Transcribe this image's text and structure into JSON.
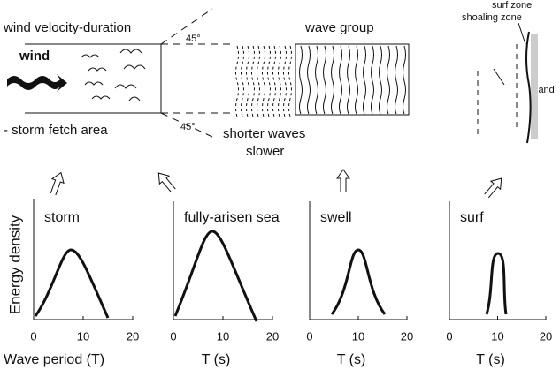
{
  "top": {
    "fetch_title": "wind velocity-duration",
    "wind": "wind",
    "fetch_label": "- storm fetch area",
    "angle_top": "45°",
    "angle_bottom": "45°",
    "group_title": "wave group",
    "group_note_1": "shorter waves",
    "group_note_2": "slower",
    "surf_zone": "surf zone",
    "shoaling_zone": "shoaling zone",
    "land": "land"
  },
  "y_label": "Energy density",
  "panels": [
    {
      "title": "storm",
      "x_label": "Wave period (T)",
      "xlim": [
        0,
        20
      ],
      "xticks": [
        0,
        10,
        20
      ]
    },
    {
      "title": "fully-arisen sea",
      "x_label": "T (s)",
      "xlim": [
        0,
        20
      ],
      "xticks": [
        0,
        10,
        20
      ]
    },
    {
      "title": "swell",
      "x_label": "T (s)",
      "xlim": [
        0,
        20
      ],
      "xticks": [
        0,
        10,
        20
      ]
    },
    {
      "title": "surf",
      "x_label": "T (s)",
      "xlim": [
        0,
        20
      ],
      "xticks": [
        0,
        10,
        20
      ]
    }
  ]
}
